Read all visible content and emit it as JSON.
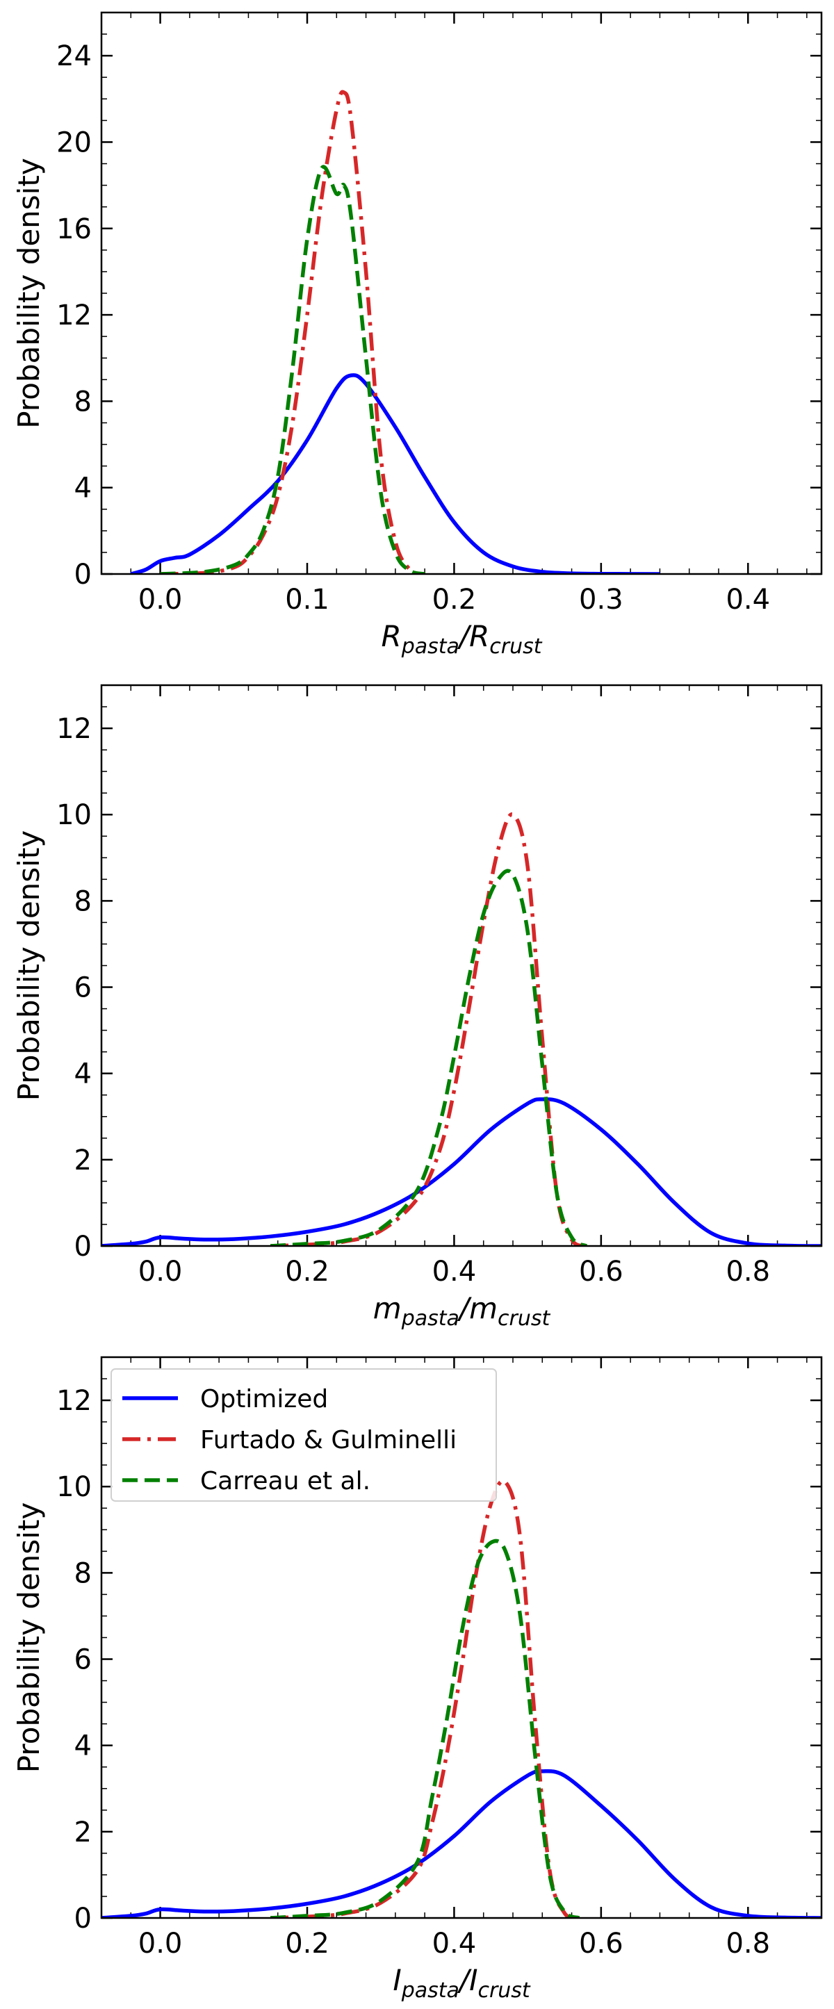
{
  "legend": {
    "entries": [
      {
        "label": "Optimized",
        "color": "#0000ff",
        "dash": "solid"
      },
      {
        "label": "Furtado & Gulminelli",
        "color": "#d62728",
        "dash": "dashdot"
      },
      {
        "label": "Carreau et al.",
        "color": "#008000",
        "dash": "dashed"
      }
    ]
  },
  "chart_data": [
    {
      "type": "line",
      "ylabel": "Probability density",
      "xlabel": {
        "base": "R",
        "sub1": "pasta",
        "sub2": "crust"
      },
      "xlim": [
        -0.04,
        0.45
      ],
      "ylim": [
        0,
        26
      ],
      "xticks": [
        0.0,
        0.1,
        0.2,
        0.3,
        0.4
      ],
      "xtick_labels": [
        "0.0",
        "0.1",
        "0.2",
        "0.3",
        "0.4"
      ],
      "yticks": [
        0,
        4,
        8,
        12,
        16,
        20,
        24
      ],
      "ytick_labels": [
        "0",
        "4",
        "8",
        "12",
        "16",
        "20",
        "24"
      ],
      "series": [
        {
          "name": "Optimized",
          "x": [
            -0.02,
            -0.01,
            0.0,
            0.01,
            0.02,
            0.04,
            0.06,
            0.08,
            0.1,
            0.12,
            0.13,
            0.14,
            0.16,
            0.18,
            0.2,
            0.22,
            0.24,
            0.26,
            0.28,
            0.3,
            0.34
          ],
          "y": [
            0,
            0.2,
            0.6,
            0.75,
            0.9,
            1.8,
            3.0,
            4.3,
            6.2,
            8.6,
            9.2,
            8.8,
            6.8,
            4.5,
            2.4,
            1.0,
            0.35,
            0.1,
            0.03,
            0.01,
            0
          ]
        },
        {
          "name": "Furtado & Gulminelli",
          "x": [
            0.0,
            0.03,
            0.05,
            0.06,
            0.07,
            0.08,
            0.09,
            0.1,
            0.11,
            0.12,
            0.125,
            0.13,
            0.14,
            0.15,
            0.16,
            0.17,
            0.18
          ],
          "y": [
            0,
            0.05,
            0.3,
            0.8,
            1.8,
            3.6,
            7.0,
            12.0,
            17.5,
            21.5,
            22.3,
            21.0,
            14.0,
            5.5,
            1.5,
            0.2,
            0
          ]
        },
        {
          "name": "Carreau et al.",
          "x": [
            0.0,
            0.03,
            0.05,
            0.06,
            0.07,
            0.08,
            0.09,
            0.1,
            0.11,
            0.12,
            0.125,
            0.13,
            0.14,
            0.15,
            0.16,
            0.17,
            0.18
          ],
          "y": [
            0,
            0.1,
            0.4,
            0.9,
            2.0,
            4.5,
            9.5,
            15.5,
            18.8,
            17.6,
            18.0,
            16.5,
            10.0,
            3.8,
            1.0,
            0.15,
            0
          ]
        }
      ]
    },
    {
      "type": "line",
      "ylabel": "Probability density",
      "xlabel": {
        "base": "m",
        "sub1": "pasta",
        "sub2": "crust"
      },
      "xlim": [
        -0.08,
        0.9
      ],
      "ylim": [
        0,
        13
      ],
      "xticks": [
        0.0,
        0.2,
        0.4,
        0.6,
        0.8
      ],
      "xtick_labels": [
        "0.0",
        "0.2",
        "0.4",
        "0.6",
        "0.8"
      ],
      "yticks": [
        0,
        2,
        4,
        6,
        8,
        10,
        12
      ],
      "ytick_labels": [
        "0",
        "2",
        "4",
        "6",
        "8",
        "10",
        "12"
      ],
      "series": [
        {
          "name": "Optimized",
          "x": [
            -0.08,
            -0.04,
            -0.02,
            0.0,
            0.03,
            0.06,
            0.1,
            0.15,
            0.2,
            0.25,
            0.3,
            0.35,
            0.4,
            0.45,
            0.5,
            0.52,
            0.55,
            0.6,
            0.65,
            0.7,
            0.75,
            0.8,
            0.85,
            0.9
          ],
          "y": [
            0,
            0.05,
            0.1,
            0.2,
            0.17,
            0.15,
            0.16,
            0.22,
            0.33,
            0.5,
            0.8,
            1.25,
            1.9,
            2.7,
            3.3,
            3.4,
            3.3,
            2.7,
            1.9,
            1.0,
            0.3,
            0.06,
            0.01,
            0
          ]
        },
        {
          "name": "Furtado & Gulminelli",
          "x": [
            0.15,
            0.2,
            0.25,
            0.3,
            0.35,
            0.38,
            0.4,
            0.42,
            0.44,
            0.46,
            0.48,
            0.5,
            0.52,
            0.54,
            0.56,
            0.58
          ],
          "y": [
            0,
            0.03,
            0.1,
            0.35,
            1.1,
            2.2,
            3.6,
            5.5,
            7.5,
            9.2,
            10.0,
            8.8,
            4.8,
            1.2,
            0.15,
            0
          ]
        },
        {
          "name": "Carreau et al.",
          "x": [
            0.15,
            0.2,
            0.25,
            0.3,
            0.35,
            0.38,
            0.4,
            0.42,
            0.44,
            0.46,
            0.48,
            0.5,
            0.52,
            0.54,
            0.56,
            0.58
          ],
          "y": [
            0,
            0.05,
            0.12,
            0.4,
            1.3,
            2.8,
            4.4,
            6.2,
            7.7,
            8.5,
            8.6,
            7.3,
            4.2,
            1.2,
            0.2,
            0
          ]
        }
      ]
    },
    {
      "type": "line",
      "ylabel": "Probability density",
      "xlabel": {
        "base": "I",
        "sub1": "pasta",
        "sub2": "crust"
      },
      "xlim": [
        -0.08,
        0.9
      ],
      "ylim": [
        0,
        13
      ],
      "xticks": [
        0.0,
        0.2,
        0.4,
        0.6,
        0.8
      ],
      "xtick_labels": [
        "0.0",
        "0.2",
        "0.4",
        "0.6",
        "0.8"
      ],
      "yticks": [
        0,
        2,
        4,
        6,
        8,
        10,
        12
      ],
      "ytick_labels": [
        "0",
        "2",
        "4",
        "6",
        "8",
        "10",
        "12"
      ],
      "legend_position": "upper-left",
      "series": [
        {
          "name": "Optimized",
          "x": [
            -0.08,
            -0.04,
            -0.02,
            0.0,
            0.03,
            0.06,
            0.1,
            0.15,
            0.2,
            0.25,
            0.3,
            0.35,
            0.4,
            0.45,
            0.5,
            0.52,
            0.55,
            0.6,
            0.65,
            0.7,
            0.75,
            0.8,
            0.85,
            0.9
          ],
          "y": [
            0,
            0.05,
            0.1,
            0.2,
            0.17,
            0.15,
            0.16,
            0.22,
            0.33,
            0.5,
            0.8,
            1.25,
            1.9,
            2.7,
            3.3,
            3.4,
            3.3,
            2.6,
            1.8,
            0.9,
            0.25,
            0.05,
            0.01,
            0
          ]
        },
        {
          "name": "Furtado & Gulminelli",
          "x": [
            0.15,
            0.2,
            0.25,
            0.3,
            0.35,
            0.37,
            0.39,
            0.41,
            0.43,
            0.45,
            0.47,
            0.49,
            0.51,
            0.53,
            0.55,
            0.57
          ],
          "y": [
            0,
            0.03,
            0.1,
            0.35,
            1.1,
            2.2,
            3.8,
            5.8,
            8.0,
            9.6,
            10.1,
            8.8,
            4.6,
            1.1,
            0.12,
            0
          ]
        },
        {
          "name": "Carreau et al.",
          "x": [
            0.15,
            0.2,
            0.25,
            0.3,
            0.35,
            0.37,
            0.39,
            0.41,
            0.43,
            0.45,
            0.47,
            0.49,
            0.51,
            0.53,
            0.55,
            0.57
          ],
          "y": [
            0,
            0.05,
            0.12,
            0.4,
            1.3,
            2.8,
            4.6,
            6.6,
            8.1,
            8.7,
            8.5,
            7.0,
            3.8,
            1.0,
            0.15,
            0
          ]
        }
      ]
    }
  ]
}
